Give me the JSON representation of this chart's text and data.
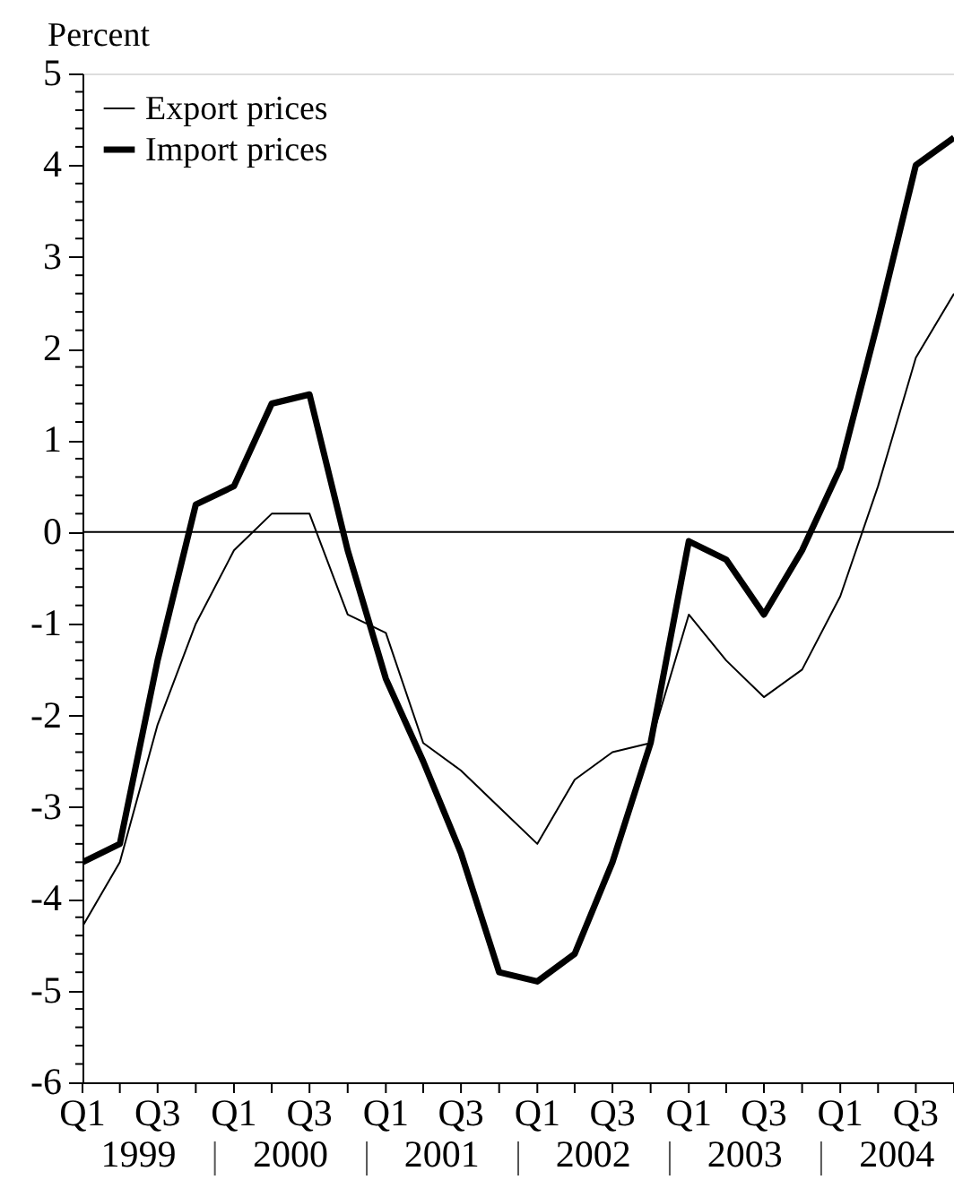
{
  "chart_data": {
    "type": "line",
    "ylabel": "Percent",
    "x": [
      "1999-01",
      "1999-04",
      "1999-07",
      "1999-10",
      "2000-01",
      "2000-04",
      "2000-07",
      "2000-10",
      "2001-01",
      "2001-04",
      "2001-07",
      "2001-10",
      "2002-01",
      "2002-04",
      "2002-07",
      "2002-10",
      "2003-01",
      "2003-04",
      "2003-07",
      "2003-10",
      "2004-01",
      "2004-04",
      "2004-07",
      "2004-10"
    ],
    "series": [
      {
        "name": "Export prices",
        "color": "#000000",
        "values": [
          -4.3,
          -3.6,
          -2.1,
          -1.0,
          -0.2,
          0.2,
          0.2,
          -0.9,
          -1.1,
          -2.3,
          -2.6,
          -3.0,
          -3.4,
          -2.7,
          -2.4,
          -2.3,
          -0.9,
          -1.4,
          -1.8,
          -1.5,
          -0.7,
          0.5,
          1.9,
          2.6
        ]
      },
      {
        "name": "Import prices",
        "color": "#000000",
        "values": [
          -3.6,
          -3.4,
          -1.4,
          0.3,
          0.5,
          1.4,
          1.5,
          -0.2,
          -1.6,
          -2.5,
          -3.5,
          -4.8,
          -4.9,
          -4.6,
          -3.6,
          -2.3,
          -0.1,
          -0.3,
          -0.9,
          -0.2,
          0.7,
          2.3,
          4.0,
          4.3
        ]
      }
    ],
    "xlim": [
      "1999-01",
      "2004-10"
    ],
    "xticks": [
      {
        "value": "1999-01",
        "label": "Q1"
      },
      {
        "value": "1999-04",
        "label": null
      },
      {
        "value": "1999-07",
        "label": "Q3"
      },
      {
        "value": "1999-10",
        "label": null
      },
      {
        "value": "2000-01",
        "label": "Q1"
      },
      {
        "value": "2000-04",
        "label": null
      },
      {
        "value": "2000-07",
        "label": "Q3"
      },
      {
        "value": "2000-10",
        "label": null
      },
      {
        "value": "2001-01",
        "label": "Q1"
      },
      {
        "value": "2001-04",
        "label": null
      },
      {
        "value": "2001-07",
        "label": "Q3"
      },
      {
        "value": "2001-10",
        "label": null
      },
      {
        "value": "2002-01",
        "label": "Q1"
      },
      {
        "value": "2002-04",
        "label": null
      },
      {
        "value": "2002-07",
        "label": "Q3"
      },
      {
        "value": "2002-10",
        "label": null
      },
      {
        "value": "2003-01",
        "label": "Q1"
      },
      {
        "value": "2003-04",
        "label": null
      },
      {
        "value": "2003-07",
        "label": "Q3"
      },
      {
        "value": "2003-10",
        "label": null
      },
      {
        "value": "2004-01",
        "label": "Q1"
      },
      {
        "value": "2004-04",
        "label": null
      },
      {
        "value": "2004-07",
        "label": "Q3"
      },
      {
        "value": "2004-10",
        "label": null
      }
    ],
    "ylim": [
      -6,
      5
    ],
    "yticks": [
      -6,
      {
        "value": -5.8,
        "label": null
      },
      {
        "value": -5.6,
        "label": null
      },
      {
        "value": -5.4,
        "label": null
      },
      {
        "value": -5.2,
        "label": null
      },
      -5,
      {
        "value": -4.8,
        "label": null
      },
      {
        "value": -4.6,
        "label": null
      },
      {
        "value": -4.4,
        "label": null
      },
      {
        "value": -4.2,
        "label": null
      },
      -4,
      {
        "value": -3.8,
        "label": null
      },
      {
        "value": -3.6,
        "label": null
      },
      {
        "value": -3.4,
        "label": null
      },
      {
        "value": -3.2,
        "label": null
      },
      -3,
      {
        "value": -2.8,
        "label": null
      },
      {
        "value": -2.6,
        "label": null
      },
      {
        "value": -2.4,
        "label": null
      },
      {
        "value": -2.2,
        "label": null
      },
      -2,
      {
        "value": -1.8,
        "label": null
      },
      {
        "value": -1.6,
        "label": null
      },
      {
        "value": -1.4,
        "label": null
      },
      {
        "value": -1.2,
        "label": null
      },
      -1,
      {
        "value": -0.8,
        "label": null
      },
      {
        "value": -0.6,
        "label": null
      },
      {
        "value": -0.4,
        "label": null
      },
      {
        "value": -0.2,
        "label": null
      },
      0,
      {
        "value": 0.2,
        "label": null
      },
      {
        "value": 0.4,
        "label": null
      },
      {
        "value": 0.6,
        "label": null
      },
      {
        "value": 0.8,
        "label": null
      },
      1,
      {
        "value": 1.2,
        "label": null
      },
      {
        "value": 1.4,
        "label": null
      },
      {
        "value": 1.6,
        "label": null
      },
      {
        "value": 1.8,
        "label": null
      },
      2,
      {
        "value": 2.2,
        "label": null
      },
      {
        "value": 2.4,
        "label": null
      },
      {
        "value": 2.6,
        "label": null
      },
      {
        "value": 2.8,
        "label": null
      },
      3,
      {
        "value": 3.2,
        "label": null
      },
      {
        "value": 3.4,
        "label": null
      },
      {
        "value": 3.6,
        "label": null
      },
      {
        "value": 3.8,
        "label": null
      },
      4,
      {
        "value": 4.2,
        "label": null
      },
      {
        "value": 4.4,
        "label": null
      },
      {
        "value": 4.6,
        "label": null
      },
      {
        "value": 4.8,
        "label": null
      },
      5
    ],
    "ref_lines": [
      {
        "axis": "y",
        "value": 0,
        "color": "#000000"
      }
    ],
    "annotations": [
      "1999",
      "2000",
      "2001",
      "2002",
      "2003",
      "2004"
    ],
    "legend": "top left",
    "grid": false,
    "marker": "none",
    "line_style": "solid"
  }
}
